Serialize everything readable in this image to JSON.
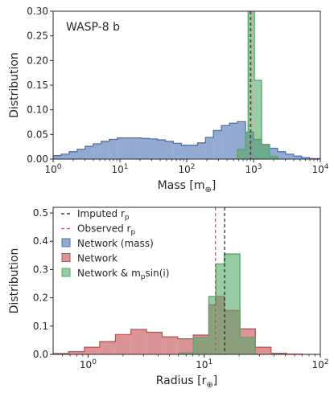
{
  "chart_data": [
    {
      "type": "histogram",
      "annotation": "WASP-8 b",
      "xlabel": "Mass [m",
      "xlabel_sub": "⊕",
      "xlabel_end": "]",
      "ylabel": "Distribution",
      "xscale": "log",
      "xlim": [
        1,
        10000
      ],
      "ylim": [
        0,
        0.3
      ],
      "x_ticks": [
        {
          "v": 1,
          "base": "10",
          "exp": "0"
        },
        {
          "v": 10,
          "base": "10",
          "exp": "1"
        },
        {
          "v": 100,
          "base": "10",
          "exp": "2"
        },
        {
          "v": 1000,
          "base": "10",
          "exp": "3"
        },
        {
          "v": 10000,
          "base": "10",
          "exp": "4"
        }
      ],
      "y_ticks": [
        "0.00",
        "0.05",
        "0.10",
        "0.15",
        "0.20",
        "0.25",
        "0.30"
      ],
      "y_tick_values": [
        0,
        0.05,
        0.1,
        0.15,
        0.2,
        0.25,
        0.3
      ],
      "series": [
        {
          "color": "#4c72b0",
          "edges": [
            1.0,
            1.32,
            1.74,
            2.29,
            3.02,
            3.98,
            5.25,
            6.92,
            9.12,
            12.0,
            15.8,
            20.9,
            27.5,
            36.3,
            47.9,
            63.1,
            83.2,
            110,
            145,
            191,
            251,
            331,
            437,
            575,
            759,
            1000,
            1320,
            1740,
            2290,
            3020,
            3980,
            5250,
            6920,
            10000
          ],
          "values": [
            0.007,
            0.01,
            0.015,
            0.02,
            0.026,
            0.031,
            0.036,
            0.04,
            0.043,
            0.043,
            0.043,
            0.042,
            0.041,
            0.039,
            0.036,
            0.032,
            0.028,
            0.028,
            0.033,
            0.044,
            0.058,
            0.068,
            0.073,
            0.076,
            0.055,
            0.04,
            0.03,
            0.022,
            0.015,
            0.01,
            0.006,
            0.003,
            0.001
          ]
        },
        {
          "color": "#55a868",
          "edges": [
            437,
            575,
            759,
            830,
            870,
            920,
            980,
            1030,
            1320,
            1740,
            2290
          ],
          "values": [
            0.0,
            0.02,
            0.055,
            0.31,
            0.31,
            0.31,
            0.31,
            0.16,
            0.03,
            0.006
          ]
        }
      ],
      "vlines": [
        {
          "x": 900,
          "color": "#222222",
          "style": "dashed"
        },
        {
          "x": 920,
          "color": "#c44e52",
          "style": "dashed"
        }
      ]
    },
    {
      "type": "histogram",
      "xlabel": "Radius [r",
      "xlabel_sub": "⊕",
      "xlabel_end": "]",
      "ylabel": "Distribution",
      "xscale": "log",
      "xlim": [
        0.5,
        100
      ],
      "ylim": [
        0,
        0.52
      ],
      "x_ticks": [
        {
          "v": 1,
          "base": "10",
          "exp": "0"
        },
        {
          "v": 10,
          "base": "10",
          "exp": "1"
        },
        {
          "v": 100,
          "base": "10",
          "exp": "2"
        }
      ],
      "y_ticks": [
        "0.0",
        "0.1",
        "0.2",
        "0.3",
        "0.4",
        "0.5"
      ],
      "y_tick_values": [
        0,
        0.1,
        0.2,
        0.3,
        0.4,
        0.5
      ],
      "legend": [
        {
          "label": "Imputed r",
          "sub": "p",
          "rest": "",
          "kind": "line",
          "color": "#222222"
        },
        {
          "label": "Observed r",
          "sub": "p",
          "rest": "",
          "kind": "line",
          "color": "#c44e52"
        },
        {
          "label": "Network (mass)",
          "sub": "",
          "rest": "",
          "kind": "patch",
          "color": "#4c72b0"
        },
        {
          "label": "Network",
          "sub": "",
          "rest": "",
          "kind": "patch",
          "color": "#c44e52"
        },
        {
          "label": "Network & m",
          "sub": "p",
          "rest": "sin(i)",
          "kind": "patch",
          "color": "#55a868"
        }
      ],
      "series": [
        {
          "color": "#c44e52",
          "edges": [
            0.5,
            0.68,
            0.93,
            1.26,
            1.72,
            2.34,
            3.19,
            4.34,
            5.91,
            8.05,
            10.96,
            12.6,
            14.9,
            20.3,
            27.6,
            37.6,
            51.2,
            69.7,
            100
          ],
          "values": [
            0.003,
            0.01,
            0.025,
            0.045,
            0.07,
            0.088,
            0.078,
            0.062,
            0.055,
            0.068,
            0.175,
            0.205,
            0.155,
            0.09,
            0.025,
            0.004,
            0.001,
            0.0
          ]
        },
        {
          "color": "#55a868",
          "edges": [
            6.0,
            8.05,
            10.96,
            12.6,
            14.9,
            20.3,
            27.6
          ],
          "values": [
            0.005,
            0.06,
            0.205,
            0.32,
            0.355,
            0.06
          ]
        }
      ],
      "vlines": [
        {
          "x": 15.0,
          "color": "#222222",
          "style": "dashed"
        },
        {
          "x": 12.5,
          "color": "#c44e52",
          "style": "dashed"
        }
      ]
    }
  ]
}
